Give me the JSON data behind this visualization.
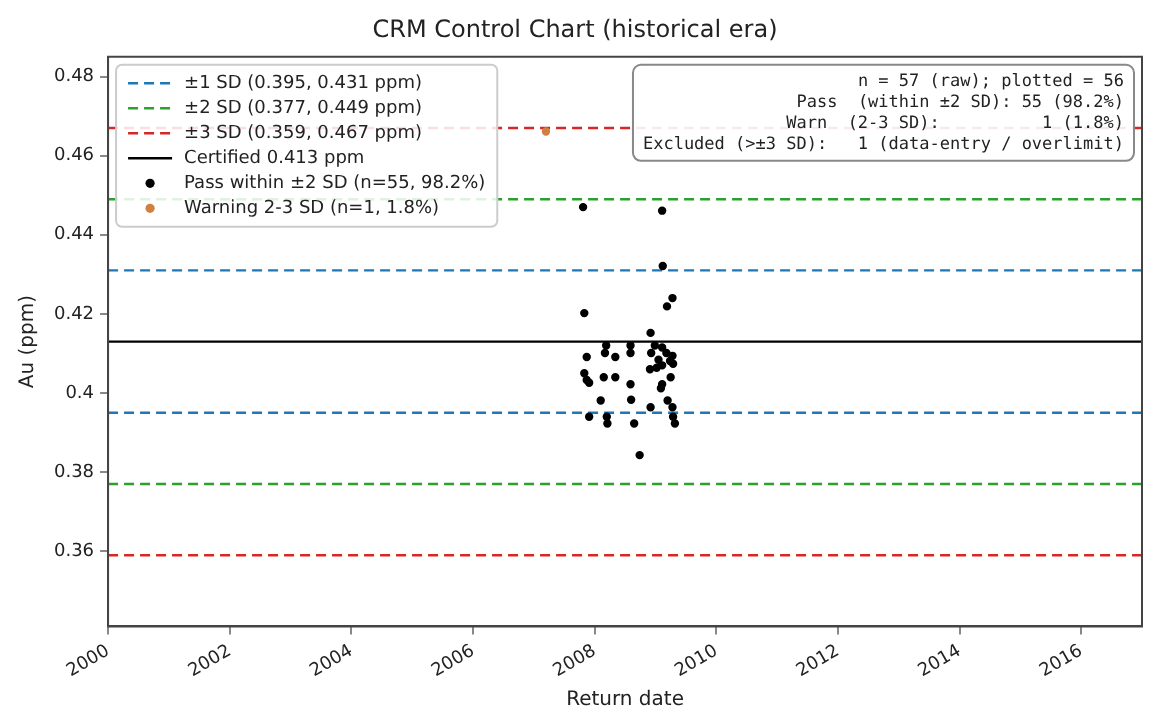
{
  "chart_data": {
    "type": "scatter",
    "title": "CRM Control Chart (historical era)",
    "xlabel": "Return date",
    "ylabel": "Au (ppm)",
    "xlim": [
      2000,
      2017
    ],
    "xticks": [
      2000,
      2002,
      2004,
      2006,
      2008,
      2010,
      2012,
      2014,
      2016
    ],
    "ylim": [
      0.341,
      0.485
    ],
    "yticks": [
      0.36,
      0.38,
      0.4,
      0.42,
      0.44,
      0.46,
      0.48
    ],
    "grid": false,
    "legend": "top left",
    "marker": "circle",
    "series": [
      {
        "name": "Pass within ±2 SD (n=55, 98.2%)",
        "color": "#000000",
        "x": [
          2007.81,
          2009.11,
          2009.12,
          2009.28,
          2009.19,
          2007.83,
          2008.92,
          2008.19,
          2008.59,
          2008.99,
          2009.11,
          2008.17,
          2008.59,
          2007.87,
          2008.34,
          2008.93,
          2009.18,
          2009.28,
          2009.05,
          2009.24,
          2009.29,
          2009.11,
          2009.02,
          2008.91,
          2007.83,
          2007.87,
          2007.91,
          2008.15,
          2008.34,
          2008.59,
          2009.25,
          2009.11,
          2009.09,
          2008.6,
          2008.1,
          2008.92,
          2009.2,
          2009.28,
          2007.91,
          2008.2,
          2009.29,
          2008.21,
          2008.65,
          2009.32,
          2008.74
        ],
        "values": [
          0.447,
          0.4461,
          0.4321,
          0.424,
          0.4219,
          0.4202,
          0.4152,
          0.412,
          0.412,
          0.412,
          0.4115,
          0.4101,
          0.4101,
          0.4091,
          0.4091,
          0.4101,
          0.4101,
          0.4094,
          0.4084,
          0.4081,
          0.4074,
          0.407,
          0.4064,
          0.406,
          0.405,
          0.4033,
          0.4026,
          0.404,
          0.404,
          0.4022,
          0.404,
          0.4022,
          0.4012,
          0.3983,
          0.3981,
          0.3964,
          0.3981,
          0.3964,
          0.394,
          0.394,
          0.394,
          0.3923,
          0.3923,
          0.3923,
          0.3843
        ]
      },
      {
        "name": "Warning 2-3 SD (n=1, 1.8%)",
        "color": "#d08040",
        "x": [
          2007.2
        ],
        "values": [
          0.4661
        ]
      }
    ],
    "ref_lines": [
      {
        "axis": "y",
        "value": 0.395,
        "label": "±1 SD (0.395, 0.431 ppm)",
        "color": "#1f77b4",
        "line_style": "dashed"
      },
      {
        "axis": "y",
        "value": 0.431,
        "label": null,
        "color": "#1f77b4",
        "line_style": "dashed"
      },
      {
        "axis": "y",
        "value": 0.377,
        "label": "±2 SD (0.377, 0.449 ppm)",
        "color": "#2ca02c",
        "line_style": "dashed"
      },
      {
        "axis": "y",
        "value": 0.449,
        "label": null,
        "color": "#2ca02c",
        "line_style": "dashed"
      },
      {
        "axis": "y",
        "value": 0.359,
        "label": "±3 SD (0.359, 0.467 ppm)",
        "color": "#d62728",
        "line_style": "dashed"
      },
      {
        "axis": "y",
        "value": 0.467,
        "label": null,
        "color": "#d62728",
        "line_style": "dashed"
      },
      {
        "axis": "y",
        "value": 0.413,
        "label": "Certified 0.413 ppm",
        "color": "#000000",
        "line_style": "solid"
      }
    ],
    "annotations": [
      "n = 57 (raw); plotted = 56",
      "Pass  (within ±2 SD): 55 (98.2%)",
      "Warn  (2-3 SD):          1 (1.8%)",
      "Excluded (>±3 SD):   1 (data-entry / overlimit)"
    ]
  }
}
